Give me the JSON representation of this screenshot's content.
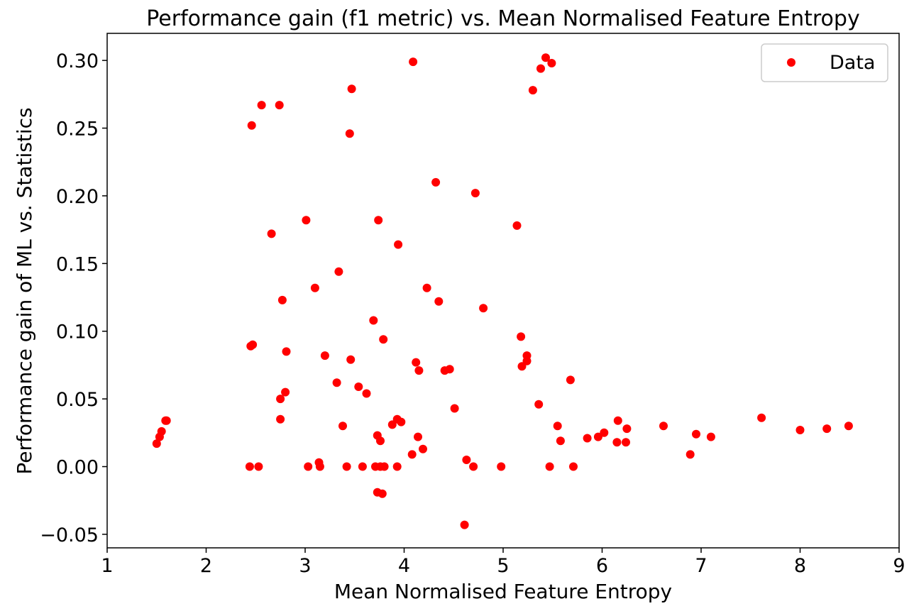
{
  "chart_data": {
    "type": "scatter",
    "title": "Performance gain (f1 metric) vs. Mean Normalised Feature Entropy",
    "xlabel": "Mean Normalised Feature Entropy",
    "ylabel": "Performance gain of ML vs. Statistics",
    "xlim": [
      1,
      9
    ],
    "ylim": [
      -0.06,
      0.32
    ],
    "xticks": [
      1,
      2,
      3,
      4,
      5,
      6,
      7,
      8,
      9
    ],
    "xtick_labels": [
      "1",
      "2",
      "3",
      "4",
      "5",
      "6",
      "7",
      "8",
      "9"
    ],
    "yticks": [
      -0.05,
      0.0,
      0.05,
      0.1,
      0.15,
      0.2,
      0.25,
      0.3
    ],
    "ytick_labels": [
      "−0.05",
      "0.00",
      "0.05",
      "0.10",
      "0.15",
      "0.20",
      "0.25",
      "0.30"
    ],
    "grid": false,
    "legend": {
      "position": "top-right",
      "entries": [
        "Data"
      ]
    },
    "marker_color": "#ff0000",
    "series": [
      {
        "name": "Data",
        "points": [
          [
            1.5,
            0.017
          ],
          [
            1.53,
            0.022
          ],
          [
            1.55,
            0.026
          ],
          [
            1.59,
            0.034
          ],
          [
            1.6,
            0.034
          ],
          [
            2.44,
            0.0
          ],
          [
            2.45,
            0.089
          ],
          [
            2.46,
            0.252
          ],
          [
            2.47,
            0.09
          ],
          [
            2.53,
            0.0
          ],
          [
            2.56,
            0.267
          ],
          [
            2.66,
            0.172
          ],
          [
            2.74,
            0.267
          ],
          [
            2.75,
            0.05
          ],
          [
            2.75,
            0.035
          ],
          [
            2.77,
            0.123
          ],
          [
            2.8,
            0.055
          ],
          [
            2.81,
            0.085
          ],
          [
            3.01,
            0.182
          ],
          [
            3.03,
            0.0
          ],
          [
            3.1,
            0.132
          ],
          [
            3.14,
            0.003
          ],
          [
            3.15,
            0.0
          ],
          [
            3.2,
            0.082
          ],
          [
            3.32,
            0.062
          ],
          [
            3.34,
            0.144
          ],
          [
            3.38,
            0.03
          ],
          [
            3.42,
            0.0
          ],
          [
            3.45,
            0.246
          ],
          [
            3.46,
            0.079
          ],
          [
            3.47,
            0.279
          ],
          [
            3.54,
            0.059
          ],
          [
            3.58,
            0.0
          ],
          [
            3.62,
            0.054
          ],
          [
            3.69,
            0.108
          ],
          [
            3.71,
            0.0
          ],
          [
            3.73,
            0.023
          ],
          [
            3.73,
            -0.019
          ],
          [
            3.74,
            0.182
          ],
          [
            3.76,
            0.019
          ],
          [
            3.76,
            0.0
          ],
          [
            3.78,
            -0.02
          ],
          [
            3.79,
            0.094
          ],
          [
            3.8,
            0.0
          ],
          [
            3.88,
            0.031
          ],
          [
            3.93,
            0.035
          ],
          [
            3.93,
            0.0
          ],
          [
            3.94,
            0.164
          ],
          [
            3.97,
            0.033
          ],
          [
            4.08,
            0.009
          ],
          [
            4.09,
            0.299
          ],
          [
            4.12,
            0.077
          ],
          [
            4.14,
            0.022
          ],
          [
            4.15,
            0.071
          ],
          [
            4.19,
            0.013
          ],
          [
            4.23,
            0.132
          ],
          [
            4.32,
            0.21
          ],
          [
            4.35,
            0.122
          ],
          [
            4.41,
            0.071
          ],
          [
            4.46,
            0.072
          ],
          [
            4.51,
            0.043
          ],
          [
            4.61,
            -0.043
          ],
          [
            4.63,
            0.005
          ],
          [
            4.7,
            0.0
          ],
          [
            4.72,
            0.202
          ],
          [
            4.8,
            0.117
          ],
          [
            4.98,
            0.0
          ],
          [
            5.14,
            0.178
          ],
          [
            5.18,
            0.096
          ],
          [
            5.19,
            0.074
          ],
          [
            5.24,
            0.082
          ],
          [
            5.24,
            0.078
          ],
          [
            5.3,
            0.278
          ],
          [
            5.36,
            0.046
          ],
          [
            5.38,
            0.294
          ],
          [
            5.43,
            0.302
          ],
          [
            5.47,
            0.0
          ],
          [
            5.49,
            0.298
          ],
          [
            5.55,
            0.03
          ],
          [
            5.58,
            0.019
          ],
          [
            5.68,
            0.064
          ],
          [
            5.71,
            0.0
          ],
          [
            5.85,
            0.021
          ],
          [
            5.96,
            0.022
          ],
          [
            6.02,
            0.025
          ],
          [
            6.15,
            0.018
          ],
          [
            6.16,
            0.034
          ],
          [
            6.24,
            0.018
          ],
          [
            6.25,
            0.028
          ],
          [
            6.62,
            0.03
          ],
          [
            6.89,
            0.009
          ],
          [
            6.95,
            0.024
          ],
          [
            7.1,
            0.022
          ],
          [
            7.61,
            0.036
          ],
          [
            8.0,
            0.027
          ],
          [
            8.27,
            0.028
          ],
          [
            8.49,
            0.03
          ]
        ]
      }
    ]
  }
}
